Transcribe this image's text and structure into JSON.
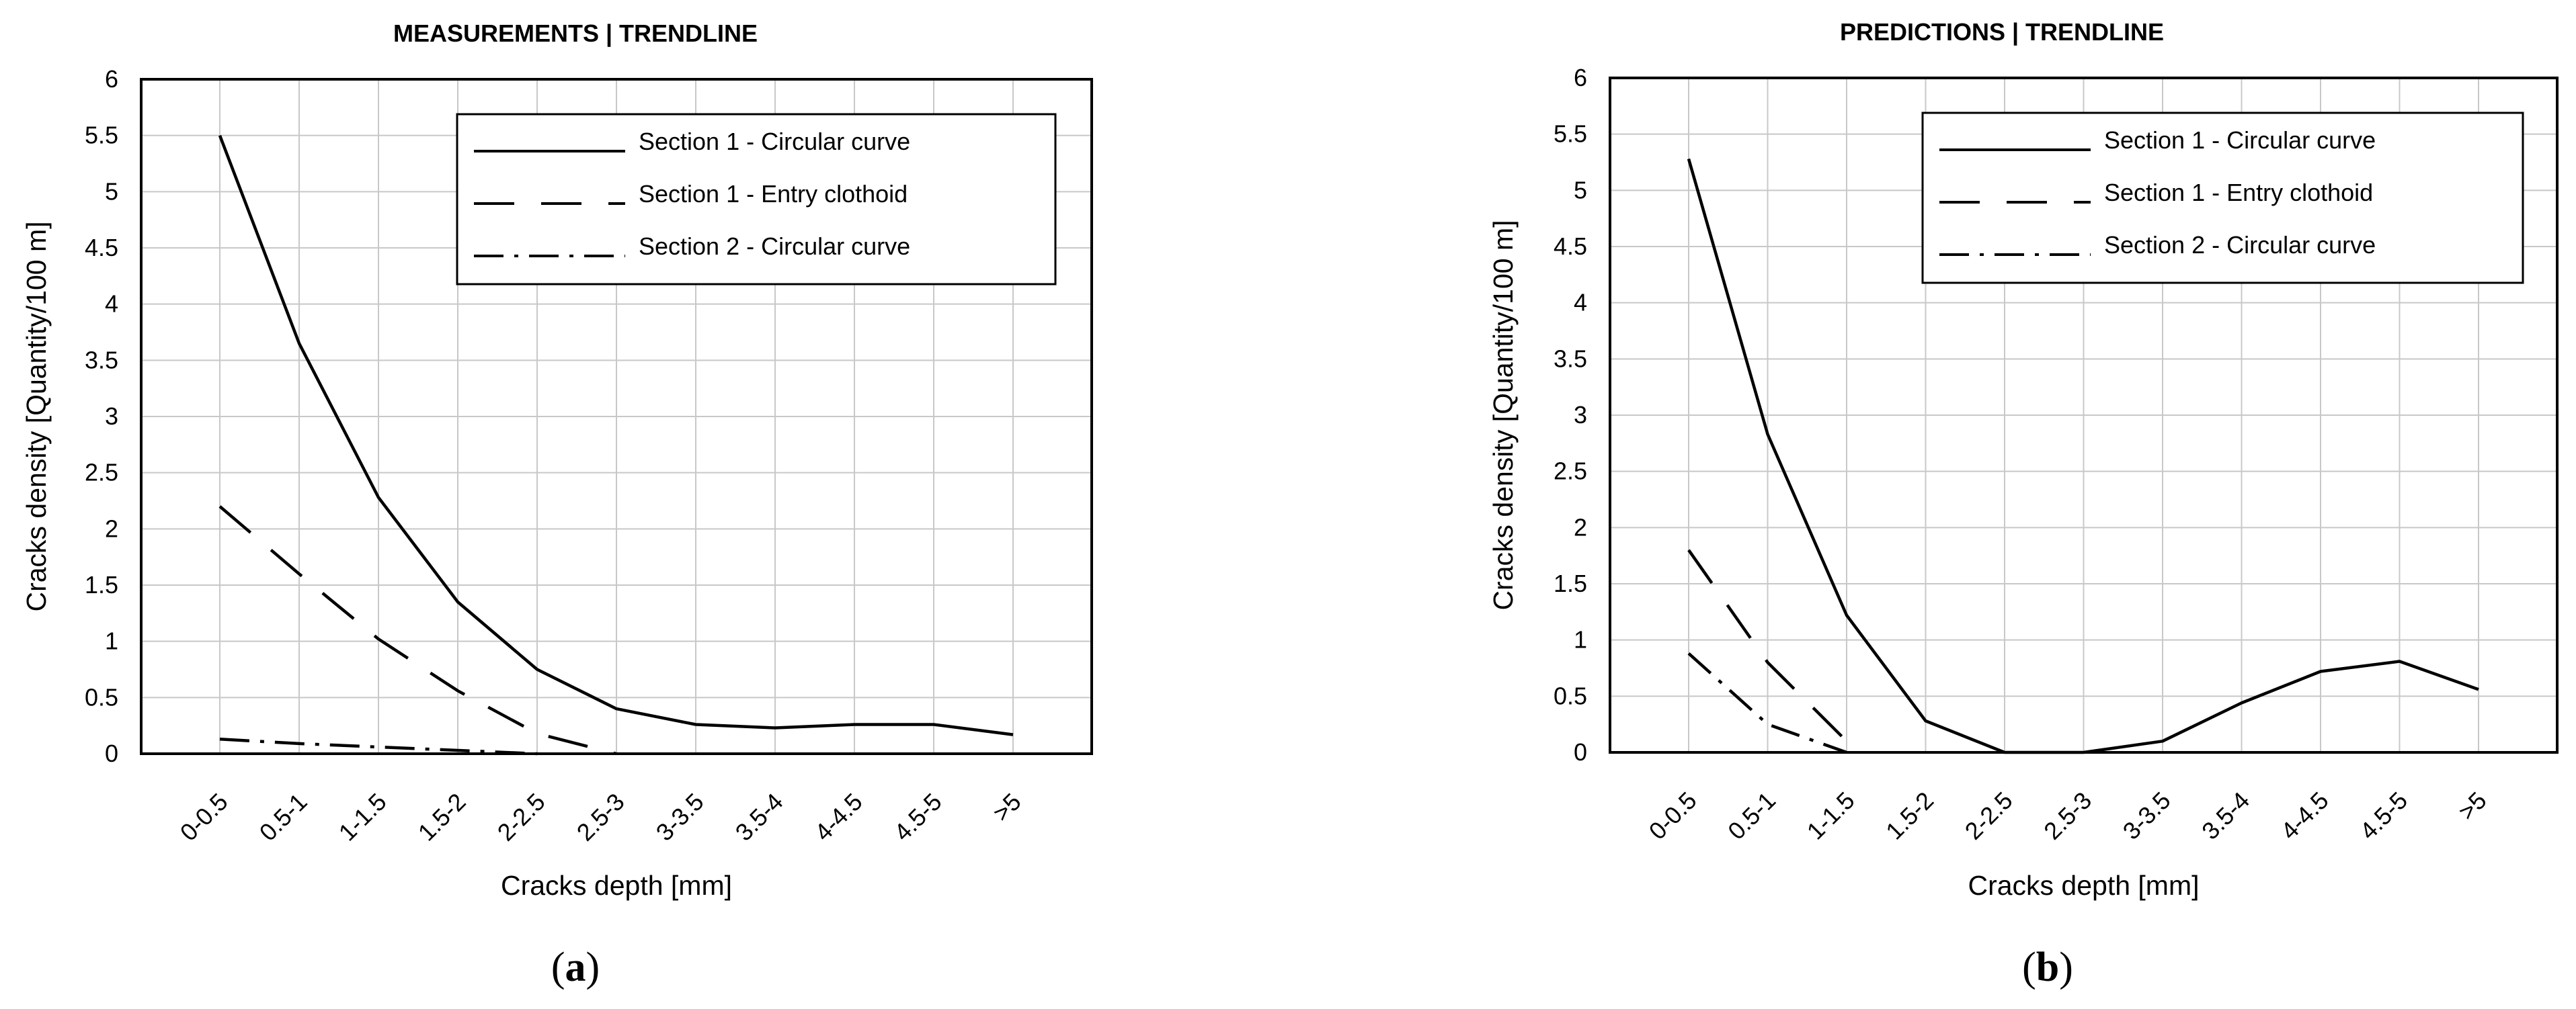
{
  "chart_data": [
    {
      "type": "line",
      "title": "MEASUREMENTS | TRENDLINE",
      "xlabel": "Cracks depth [mm]",
      "ylabel": "Cracks density [Quantity/100 m]",
      "panel_label": "a",
      "categories": [
        "0-0.5",
        "0.5-1",
        "1-1.5",
        "1.5-2",
        "2-2.5",
        "2.5-3",
        "3-3.5",
        "3.5-4",
        "4-4.5",
        "4.5-5",
        ">5"
      ],
      "ylim": [
        0,
        6
      ],
      "yticks": [
        "0",
        "0.5",
        "1",
        "1.5",
        "2",
        "2.5",
        "3",
        "3.5",
        "4",
        "4.5",
        "5",
        "5.5",
        "6"
      ],
      "grid": true,
      "legend_position": "top-right",
      "series": [
        {
          "name": "Section 1 - Circular curve",
          "style": "solid",
          "values": [
            5.5,
            3.65,
            2.28,
            1.35,
            0.75,
            0.4,
            0.26,
            0.23,
            0.26,
            0.26,
            0.17
          ]
        },
        {
          "name": "Section 1 - Entry clothoid",
          "style": "dashed",
          "values": [
            2.2,
            1.6,
            1.02,
            0.56,
            0.18,
            0.0,
            null,
            null,
            null,
            null,
            null
          ]
        },
        {
          "name": "Section 2 - Circular curve",
          "style": "dashdot",
          "values": [
            0.13,
            0.09,
            0.06,
            0.03,
            0.0,
            null,
            null,
            null,
            null,
            null,
            null
          ]
        }
      ]
    },
    {
      "type": "line",
      "title": "PREDICTIONS | TRENDLINE",
      "xlabel": "Cracks depth [mm]",
      "ylabel": "Cracks density [Quantity/100 m]",
      "panel_label": "b",
      "categories": [
        "0-0.5",
        "0.5-1",
        "1-1.5",
        "1.5-2",
        "2-2.5",
        "2.5-3",
        "3-3.5",
        "3.5-4",
        "4-4.5",
        "4.5-5",
        ">5"
      ],
      "ylim": [
        0,
        6
      ],
      "yticks": [
        "0",
        "0.5",
        "1",
        "1.5",
        "2",
        "2.5",
        "3",
        "3.5",
        "4",
        "4.5",
        "5",
        "5.5",
        "6"
      ],
      "grid": true,
      "legend_position": "top-right",
      "series": [
        {
          "name": "Section 1 - Circular curve",
          "style": "solid",
          "values": [
            5.28,
            2.83,
            1.22,
            0.28,
            0.0,
            0.0,
            0.1,
            0.44,
            0.72,
            0.81,
            0.56
          ]
        },
        {
          "name": "Section 1 - Entry clothoid",
          "style": "dashed",
          "values": [
            1.8,
            0.8,
            0.1,
            null,
            null,
            null,
            null,
            null,
            null,
            null,
            null
          ]
        },
        {
          "name": "Section 2 - Circular curve",
          "style": "dashdot",
          "values": [
            0.88,
            0.25,
            0.0,
            null,
            null,
            null,
            null,
            null,
            null,
            null,
            null
          ]
        }
      ]
    }
  ],
  "colors": {
    "line": "#000000",
    "grid": "#c8c8c8",
    "background": "#ffffff"
  }
}
